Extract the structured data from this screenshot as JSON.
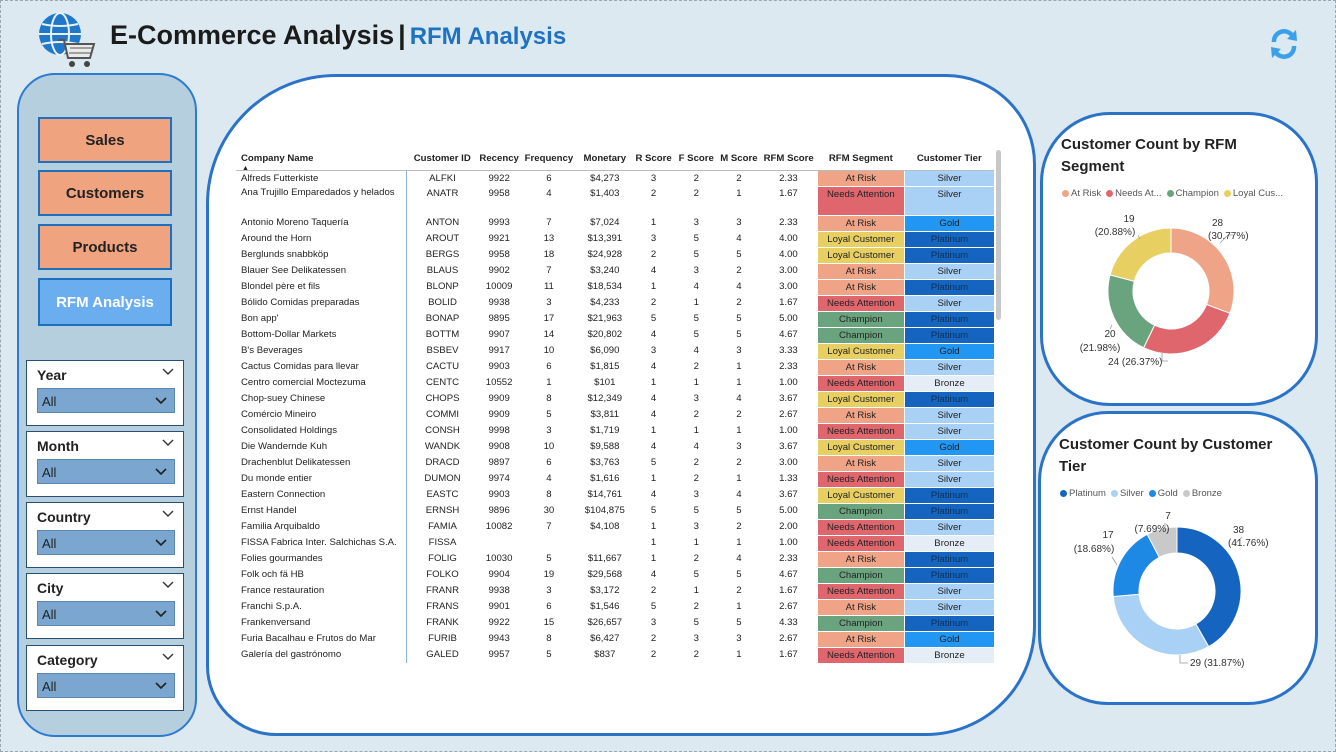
{
  "header": {
    "title": "E-Commerce Analysis",
    "separator": "|",
    "subtitle": "RFM Analysis"
  },
  "icons": {
    "logo": "globe-cart-icon",
    "refresh": "refresh-icon"
  },
  "nav": {
    "buttons": [
      {
        "label": "Sales",
        "active": false
      },
      {
        "label": "Customers",
        "active": false
      },
      {
        "label": "Products",
        "active": false
      },
      {
        "label": "RFM Analysis",
        "active": true
      }
    ]
  },
  "filters": [
    {
      "label": "Year",
      "value": "All"
    },
    {
      "label": "Month",
      "value": "All"
    },
    {
      "label": "Country",
      "value": "All"
    },
    {
      "label": "City",
      "value": "All"
    },
    {
      "label": "Category",
      "value": "All"
    }
  ],
  "table": {
    "columns": [
      "Company Name",
      "Customer ID",
      "Recency",
      "Frequency",
      "Monetary",
      "R Score",
      "F Score",
      "M Score",
      "RFM Score",
      "RFM Segment",
      "Customer Tier"
    ],
    "sort_column": "Company Name",
    "rows": [
      [
        "Alfreds Futterkiste",
        "ALFKI",
        "9922",
        "6",
        "$4,273",
        "3",
        "2",
        "2",
        "2.33",
        "At Risk",
        "Silver"
      ],
      [
        "Ana Trujillo Emparedados y helados",
        "ANATR",
        "9958",
        "4",
        "$1,403",
        "2",
        "2",
        "1",
        "1.67",
        "Needs Attention",
        "Silver"
      ],
      [
        "Antonio Moreno Taquería",
        "ANTON",
        "9993",
        "7",
        "$7,024",
        "1",
        "3",
        "3",
        "2.33",
        "At Risk",
        "Gold"
      ],
      [
        "Around the Horn",
        "AROUT",
        "9921",
        "13",
        "$13,391",
        "3",
        "5",
        "4",
        "4.00",
        "Loyal Customer",
        "Platinum"
      ],
      [
        "Berglunds snabbköp",
        "BERGS",
        "9958",
        "18",
        "$24,928",
        "2",
        "5",
        "5",
        "4.00",
        "Loyal Customer",
        "Platinum"
      ],
      [
        "Blauer See Delikatessen",
        "BLAUS",
        "9902",
        "7",
        "$3,240",
        "4",
        "3",
        "2",
        "3.00",
        "At Risk",
        "Silver"
      ],
      [
        "Blondel père et fils",
        "BLONP",
        "10009",
        "11",
        "$18,534",
        "1",
        "4",
        "4",
        "3.00",
        "At Risk",
        "Platinum"
      ],
      [
        "Bólido Comidas preparadas",
        "BOLID",
        "9938",
        "3",
        "$4,233",
        "2",
        "1",
        "2",
        "1.67",
        "Needs Attention",
        "Silver"
      ],
      [
        "Bon app'",
        "BONAP",
        "9895",
        "17",
        "$21,963",
        "5",
        "5",
        "5",
        "5.00",
        "Champion",
        "Platinum"
      ],
      [
        "Bottom-Dollar Markets",
        "BOTTM",
        "9907",
        "14",
        "$20,802",
        "4",
        "5",
        "5",
        "4.67",
        "Champion",
        "Platinum"
      ],
      [
        "B's Beverages",
        "BSBEV",
        "9917",
        "10",
        "$6,090",
        "3",
        "4",
        "3",
        "3.33",
        "Loyal Customer",
        "Gold"
      ],
      [
        "Cactus Comidas para llevar",
        "CACTU",
        "9903",
        "6",
        "$1,815",
        "4",
        "2",
        "1",
        "2.33",
        "At Risk",
        "Silver"
      ],
      [
        "Centro comercial Moctezuma",
        "CENTC",
        "10552",
        "1",
        "$101",
        "1",
        "1",
        "1",
        "1.00",
        "Needs Attention",
        "Bronze"
      ],
      [
        "Chop-suey Chinese",
        "CHOPS",
        "9909",
        "8",
        "$12,349",
        "4",
        "3",
        "4",
        "3.67",
        "Loyal Customer",
        "Platinum"
      ],
      [
        "Comércio Mineiro",
        "COMMI",
        "9909",
        "5",
        "$3,811",
        "4",
        "2",
        "2",
        "2.67",
        "At Risk",
        "Silver"
      ],
      [
        "Consolidated Holdings",
        "CONSH",
        "9998",
        "3",
        "$1,719",
        "1",
        "1",
        "1",
        "1.00",
        "Needs Attention",
        "Silver"
      ],
      [
        "Die Wandernde Kuh",
        "WANDK",
        "9908",
        "10",
        "$9,588",
        "4",
        "4",
        "3",
        "3.67",
        "Loyal Customer",
        "Gold"
      ],
      [
        "Drachenblut Delikatessen",
        "DRACD",
        "9897",
        "6",
        "$3,763",
        "5",
        "2",
        "2",
        "3.00",
        "At Risk",
        "Silver"
      ],
      [
        "Du monde entier",
        "DUMON",
        "9974",
        "4",
        "$1,616",
        "1",
        "2",
        "1",
        "1.33",
        "Needs Attention",
        "Silver"
      ],
      [
        "Eastern Connection",
        "EASTC",
        "9903",
        "8",
        "$14,761",
        "4",
        "3",
        "4",
        "3.67",
        "Loyal Customer",
        "Platinum"
      ],
      [
        "Ernst Handel",
        "ERNSH",
        "9896",
        "30",
        "$104,875",
        "5",
        "5",
        "5",
        "5.00",
        "Champion",
        "Platinum"
      ],
      [
        "Familia Arquibaldo",
        "FAMIA",
        "10082",
        "7",
        "$4,108",
        "1",
        "3",
        "2",
        "2.00",
        "Needs Attention",
        "Silver"
      ],
      [
        "FISSA Fabrica Inter. Salchichas S.A.",
        "FISSA",
        "",
        "",
        "",
        "1",
        "1",
        "1",
        "1.00",
        "Needs Attention",
        "Bronze"
      ],
      [
        "Folies gourmandes",
        "FOLIG",
        "10030",
        "5",
        "$11,667",
        "1",
        "2",
        "4",
        "2.33",
        "At Risk",
        "Platinum"
      ],
      [
        "Folk och fä HB",
        "FOLKO",
        "9904",
        "19",
        "$29,568",
        "4",
        "5",
        "5",
        "4.67",
        "Champion",
        "Platinum"
      ],
      [
        "France restauration",
        "FRANR",
        "9938",
        "3",
        "$3,172",
        "2",
        "1",
        "2",
        "1.67",
        "Needs Attention",
        "Silver"
      ],
      [
        "Franchi S.p.A.",
        "FRANS",
        "9901",
        "6",
        "$1,546",
        "5",
        "2",
        "1",
        "2.67",
        "At Risk",
        "Silver"
      ],
      [
        "Frankenversand",
        "FRANK",
        "9922",
        "15",
        "$26,657",
        "3",
        "5",
        "5",
        "4.33",
        "Champion",
        "Platinum"
      ],
      [
        "Furia Bacalhau e Frutos do Mar",
        "FURIB",
        "9943",
        "8",
        "$6,427",
        "2",
        "3",
        "3",
        "2.67",
        "At Risk",
        "Gold"
      ],
      [
        "Galería del gastrónomo",
        "GALED",
        "9957",
        "5",
        "$837",
        "2",
        "2",
        "1",
        "1.67",
        "Needs Attention",
        "Bronze"
      ]
    ],
    "segment_colors": {
      "At Risk": "#f0a487",
      "Needs Attention": "#e0666e",
      "Champion": "#6aa47e",
      "Loyal Customer": "#e7cf62"
    },
    "tier_colors": {
      "Platinum": "#1565c0",
      "Gold": "#2196f3",
      "Silver": "#a9d0f5",
      "Bronze": "#e5eef7"
    }
  },
  "chart_data": [
    {
      "type": "pie",
      "title": "Customer Count by RFM Segment",
      "legend": [
        "At Risk",
        "Needs At...",
        "Champion",
        "Loyal Cus..."
      ],
      "categories": [
        "At Risk",
        "Needs Attention",
        "Champion",
        "Loyal Customer"
      ],
      "values": [
        28,
        24,
        20,
        19
      ],
      "labels": [
        "28 (30.77%)",
        "24 (26.37%)",
        "20 (21.98%)",
        "19 (20.88%)"
      ],
      "colors": [
        "#f0a487",
        "#e0666e",
        "#6aa47e",
        "#e7cf62"
      ],
      "donut": true,
      "legend_position": "top-left"
    },
    {
      "type": "pie",
      "title": "Customer Count by Customer Tier",
      "legend": [
        "Platinum",
        "Silver",
        "Gold",
        "Bronze"
      ],
      "categories": [
        "Platinum",
        "Silver",
        "Gold",
        "Bronze"
      ],
      "values": [
        38,
        29,
        17,
        7
      ],
      "labels": [
        "38 (41.76%)",
        "29 (31.87%)",
        "17 (18.68%)",
        "7 (7.69%)"
      ],
      "colors": [
        "#1565c0",
        "#a9d0f5",
        "#1e88e5",
        "#c9c9c9"
      ],
      "donut": true,
      "legend_position": "top-left"
    }
  ]
}
